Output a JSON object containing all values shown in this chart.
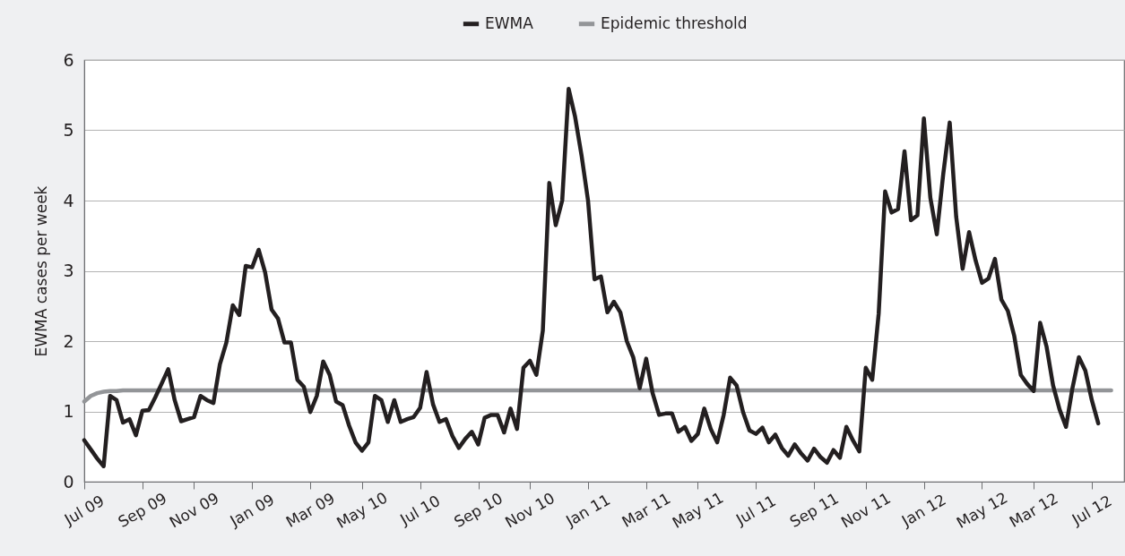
{
  "chart_data": {
    "type": "line",
    "ylabel": "EWMA cases per week",
    "ylim": [
      0,
      6
    ],
    "yticks": [
      0,
      1,
      2,
      3,
      4,
      5,
      6
    ],
    "grid": "y",
    "legend": "top",
    "line_style": "solid",
    "categories": [
      "Jul 09",
      null,
      null,
      null,
      null,
      null,
      null,
      null,
      null,
      "Sep 09",
      null,
      null,
      null,
      null,
      null,
      null,
      null,
      "Nov 09",
      null,
      null,
      null,
      null,
      null,
      null,
      null,
      null,
      "Jan 09",
      null,
      null,
      null,
      null,
      null,
      null,
      null,
      null,
      "Mar 09",
      null,
      null,
      null,
      null,
      null,
      null,
      null,
      "May 10",
      null,
      null,
      null,
      null,
      null,
      null,
      null,
      null,
      "Jul 10",
      null,
      null,
      null,
      null,
      null,
      null,
      null,
      null,
      "Sep 10",
      null,
      null,
      null,
      null,
      null,
      null,
      null,
      "Nov 10",
      null,
      null,
      null,
      null,
      null,
      null,
      null,
      null,
      "Jan 11",
      null,
      null,
      null,
      null,
      null,
      null,
      null,
      null,
      "Mar 11",
      null,
      null,
      null,
      null,
      null,
      null,
      null,
      "May 11",
      null,
      null,
      null,
      null,
      null,
      null,
      null,
      null,
      "Jul 11",
      null,
      null,
      null,
      null,
      null,
      null,
      null,
      null,
      "Sep 11",
      null,
      null,
      null,
      null,
      null,
      null,
      null,
      "Nov 11",
      null,
      null,
      null,
      null,
      null,
      null,
      null,
      null,
      "Jan 12",
      null,
      null,
      null,
      null,
      null,
      null,
      null,
      null,
      "May 12",
      null,
      null,
      null,
      null,
      null,
      null,
      null,
      "Mar 12",
      null,
      null,
      null,
      null,
      null,
      null,
      null,
      null,
      "Jul 12",
      null,
      null,
      null,
      null,
      null
    ],
    "series": [
      {
        "name": "EWMA",
        "color": "#231f20",
        "values": [
          0.59,
          0.46,
          0.33,
          0.22,
          1.22,
          1.16,
          0.84,
          0.89,
          0.66,
          1.01,
          1.02,
          1.2,
          1.4,
          1.6,
          1.16,
          0.86,
          0.89,
          0.92,
          1.22,
          1.16,
          1.12,
          1.67,
          1.98,
          2.51,
          2.37,
          3.07,
          3.05,
          3.3,
          2.98,
          2.45,
          2.32,
          1.98,
          1.98,
          1.45,
          1.35,
          0.99,
          1.22,
          1.71,
          1.52,
          1.14,
          1.09,
          0.8,
          0.56,
          0.44,
          0.56,
          1.22,
          1.16,
          0.85,
          1.16,
          0.85,
          0.89,
          0.92,
          1.05,
          1.56,
          1.1,
          0.85,
          0.89,
          0.65,
          0.48,
          0.61,
          0.71,
          0.53,
          0.91,
          0.95,
          0.95,
          0.7,
          1.04,
          0.75,
          1.62,
          1.72,
          1.52,
          2.15,
          4.25,
          3.65,
          4.0,
          5.59,
          5.19,
          4.64,
          4.0,
          2.88,
          2.92,
          2.41,
          2.56,
          2.41,
          2.0,
          1.77,
          1.33,
          1.75,
          1.26,
          0.95,
          0.97,
          0.97,
          0.71,
          0.78,
          0.58,
          0.68,
          1.04,
          0.75,
          0.56,
          0.95,
          1.48,
          1.37,
          0.99,
          0.73,
          0.68,
          0.77,
          0.56,
          0.67,
          0.48,
          0.37,
          0.53,
          0.4,
          0.3,
          0.47,
          0.35,
          0.27,
          0.45,
          0.34,
          0.78,
          0.59,
          0.43,
          1.62,
          1.45,
          2.39,
          4.13,
          3.83,
          3.88,
          4.7,
          3.72,
          3.79,
          5.17,
          4.04,
          3.52,
          4.38,
          5.11,
          3.77,
          3.03,
          3.55,
          3.15,
          2.83,
          2.89,
          3.17,
          2.59,
          2.43,
          2.07,
          1.52,
          1.39,
          1.29,
          2.26,
          1.92,
          1.37,
          1.03,
          0.78,
          1.33,
          1.77,
          1.58,
          1.16,
          0.83,
          null,
          null,
          null,
          null
        ]
      },
      {
        "name": "Epidemic threshold",
        "color": "#939598",
        "values": [
          1.14,
          1.22,
          1.26,
          1.28,
          1.29,
          1.29,
          1.3,
          1.3,
          1.3,
          1.3,
          1.3,
          1.3,
          1.3,
          1.3,
          1.3,
          1.3,
          1.3,
          1.3,
          1.3,
          1.3,
          1.3,
          1.3,
          1.3,
          1.3,
          1.3,
          1.3,
          1.3,
          1.3,
          1.3,
          1.3,
          1.3,
          1.3,
          1.3,
          1.3,
          1.3,
          1.3,
          1.3,
          1.3,
          1.3,
          1.3,
          1.3,
          1.3,
          1.3,
          1.3,
          1.3,
          1.3,
          1.3,
          1.3,
          1.3,
          1.3,
          1.3,
          1.3,
          1.3,
          1.3,
          1.3,
          1.3,
          1.3,
          1.3,
          1.3,
          1.3,
          1.3,
          1.3,
          1.3,
          1.3,
          1.3,
          1.3,
          1.3,
          1.3,
          1.3,
          1.3,
          1.3,
          1.3,
          1.3,
          1.3,
          1.3,
          1.3,
          1.3,
          1.3,
          1.3,
          1.3,
          1.3,
          1.3,
          1.3,
          1.3,
          1.3,
          1.3,
          1.3,
          1.3,
          1.3,
          1.3,
          1.3,
          1.3,
          1.3,
          1.3,
          1.3,
          1.3,
          1.3,
          1.3,
          1.3,
          1.3,
          1.3,
          1.3,
          1.3,
          1.3,
          1.3,
          1.3,
          1.3,
          1.3,
          1.3,
          1.3,
          1.3,
          1.3,
          1.3,
          1.3,
          1.3,
          1.3,
          1.3,
          1.3,
          1.3,
          1.3,
          1.3,
          1.3,
          1.3,
          1.3,
          1.3,
          1.3,
          1.3,
          1.3,
          1.3,
          1.3,
          1.3,
          1.3,
          1.3,
          1.3,
          1.3,
          1.3,
          1.3,
          1.3,
          1.3,
          1.3,
          1.3,
          1.3,
          1.3,
          1.3,
          1.3,
          1.3,
          1.3,
          1.3,
          1.3,
          1.3,
          1.3,
          1.3,
          1.3,
          1.3,
          1.3,
          1.3,
          1.3,
          1.3,
          1.3,
          1.3,
          null,
          null
        ]
      }
    ]
  }
}
